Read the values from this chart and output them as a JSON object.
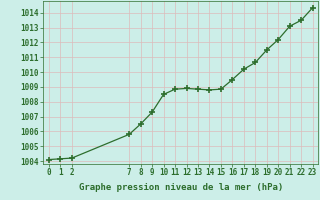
{
  "x": [
    0,
    1,
    2,
    7,
    8,
    9,
    10,
    11,
    12,
    13,
    14,
    15,
    16,
    17,
    18,
    19,
    20,
    21,
    22,
    23
  ],
  "y": [
    1004.1,
    1004.15,
    1004.2,
    1005.8,
    1006.5,
    1007.3,
    1008.5,
    1008.85,
    1008.9,
    1008.85,
    1008.8,
    1008.85,
    1009.5,
    1010.2,
    1010.65,
    1011.5,
    1012.2,
    1013.1,
    1013.5,
    1014.35
  ],
  "line_color": "#2d6e2d",
  "marker": "+",
  "marker_size": 4,
  "marker_lw": 1.2,
  "line_width": 0.9,
  "bg_color": "#cceee8",
  "grid_color": "#ddbbbb",
  "xlabel": "Graphe pression niveau de la mer (hPa)",
  "xlabel_fontsize": 6.5,
  "ylabel_ticks": [
    1004,
    1005,
    1006,
    1007,
    1008,
    1009,
    1010,
    1011,
    1012,
    1013,
    1014
  ],
  "xtick_labels": [
    "0",
    "1",
    "2",
    "7",
    "8",
    "9",
    "10",
    "11",
    "12",
    "13",
    "14",
    "15",
    "16",
    "17",
    "18",
    "19",
    "20",
    "21",
    "22",
    "23"
  ],
  "xticks_pos": [
    0,
    1,
    2,
    7,
    8,
    9,
    10,
    11,
    12,
    13,
    14,
    15,
    16,
    17,
    18,
    19,
    20,
    21,
    22,
    23
  ],
  "xlim": [
    -0.5,
    23.5
  ],
  "ylim": [
    1003.8,
    1014.8
  ],
  "tick_fontsize": 5.5
}
